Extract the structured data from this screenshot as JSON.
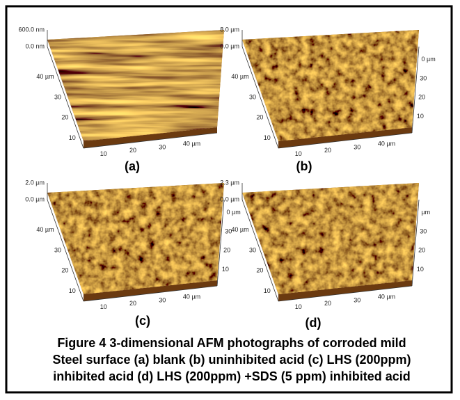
{
  "figure": {
    "panels": [
      {
        "label": "(a)",
        "z_top": "600.0 nm",
        "z_base": "0.0 nm",
        "left_ticks": [
          "40 µm",
          "30",
          "20",
          "10"
        ],
        "bottom_ticks": [
          "10",
          "20",
          "30",
          "40 µm"
        ]
      },
      {
        "label": "(b)",
        "z_top": "8.0 µm",
        "z_base": "0.0 µm",
        "left_ticks": [
          "40 µm",
          "30",
          "20",
          "10"
        ],
        "bottom_ticks": [
          "10",
          "20",
          "30",
          "40 µm"
        ],
        "right_ticks": [
          "0 µm",
          "30",
          "20",
          "10"
        ]
      },
      {
        "label": "(c)",
        "z_top": "2.0 µm",
        "z_base": "0.0 µm",
        "left_ticks": [
          "40 µm",
          "30",
          "20",
          "10"
        ],
        "bottom_ticks": [
          "10",
          "20",
          "30",
          "40 µm"
        ],
        "right_ticks": [
          "0 µm",
          "30",
          "20",
          "10"
        ]
      },
      {
        "label": "(d)",
        "z_top": "2.3 µm",
        "z_base": "0.0 µm",
        "left_ticks": [
          "40 µm",
          "30",
          "20",
          "10"
        ],
        "bottom_ticks": [
          "10",
          "20",
          "30",
          "40 µm"
        ],
        "right_ticks": [
          "µm",
          "30",
          "20",
          "10"
        ]
      }
    ],
    "caption": [
      "Figure 4  3-dimensional AFM photographs of corroded mild",
      "Steel surface (a) blank (b) uninhibited acid (c) LHS (200ppm)",
      "inhibited acid (d) LHS (200ppm) +SDS (5 ppm) inhibited acid"
    ]
  }
}
